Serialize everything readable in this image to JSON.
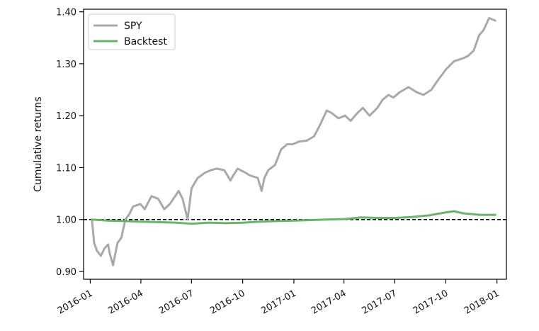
{
  "chart_data": {
    "type": "line",
    "title": "",
    "xlabel": "",
    "ylabel": "Cumulative returns",
    "xlim": [
      "2015-12-20",
      "2018-01-18"
    ],
    "ylim": [
      0.885,
      1.405
    ],
    "x_ticks": [
      "2016-01",
      "2016-04",
      "2016-07",
      "2016-10",
      "2017-01",
      "2017-04",
      "2017-07",
      "2017-10",
      "2018-01"
    ],
    "y_ticks": [
      0.9,
      1.0,
      1.1,
      1.2,
      1.3,
      1.4
    ],
    "y_tick_labels": [
      "0.90",
      "1.00",
      "1.10",
      "1.20",
      "1.30",
      "1.40"
    ],
    "reference_line": {
      "y": 1.0,
      "style": "dashed",
      "color": "#000000"
    },
    "legend_position": "top-left",
    "grid": false,
    "series": [
      {
        "name": "SPY",
        "color": "#a9a9a9",
        "points": [
          [
            "2016-01-04",
            1.0
          ],
          [
            "2016-01-08",
            0.955
          ],
          [
            "2016-01-13",
            0.94
          ],
          [
            "2016-01-20",
            0.93
          ],
          [
            "2016-01-27",
            0.945
          ],
          [
            "2016-02-02",
            0.952
          ],
          [
            "2016-02-05",
            0.935
          ],
          [
            "2016-02-11",
            0.912
          ],
          [
            "2016-02-19",
            0.955
          ],
          [
            "2016-02-26",
            0.965
          ],
          [
            "2016-03-04",
            1.0
          ],
          [
            "2016-03-11",
            1.01
          ],
          [
            "2016-03-18",
            1.025
          ],
          [
            "2016-03-31",
            1.03
          ],
          [
            "2016-04-08",
            1.02
          ],
          [
            "2016-04-20",
            1.045
          ],
          [
            "2016-05-02",
            1.04
          ],
          [
            "2016-05-13",
            1.02
          ],
          [
            "2016-05-23",
            1.03
          ],
          [
            "2016-06-08",
            1.055
          ],
          [
            "2016-06-15",
            1.04
          ],
          [
            "2016-06-24",
            1.0
          ],
          [
            "2016-07-01",
            1.06
          ],
          [
            "2016-07-12",
            1.08
          ],
          [
            "2016-07-25",
            1.09
          ],
          [
            "2016-08-05",
            1.095
          ],
          [
            "2016-08-15",
            1.098
          ],
          [
            "2016-08-29",
            1.095
          ],
          [
            "2016-09-09",
            1.075
          ],
          [
            "2016-09-14",
            1.085
          ],
          [
            "2016-09-22",
            1.098
          ],
          [
            "2016-10-06",
            1.09
          ],
          [
            "2016-10-14",
            1.085
          ],
          [
            "2016-10-28",
            1.08
          ],
          [
            "2016-11-04",
            1.055
          ],
          [
            "2016-11-09",
            1.08
          ],
          [
            "2016-11-16",
            1.095
          ],
          [
            "2016-11-28",
            1.105
          ],
          [
            "2016-12-09",
            1.135
          ],
          [
            "2016-12-20",
            1.145
          ],
          [
            "2016-12-30",
            1.145
          ],
          [
            "2017-01-10",
            1.15
          ],
          [
            "2017-01-24",
            1.152
          ],
          [
            "2017-02-06",
            1.16
          ],
          [
            "2017-02-16",
            1.18
          ],
          [
            "2017-03-01",
            1.21
          ],
          [
            "2017-03-10",
            1.205
          ],
          [
            "2017-03-22",
            1.195
          ],
          [
            "2017-04-03",
            1.2
          ],
          [
            "2017-04-13",
            1.19
          ],
          [
            "2017-04-25",
            1.205
          ],
          [
            "2017-05-05",
            1.215
          ],
          [
            "2017-05-17",
            1.2
          ],
          [
            "2017-05-31",
            1.215
          ],
          [
            "2017-06-09",
            1.23
          ],
          [
            "2017-06-20",
            1.24
          ],
          [
            "2017-06-29",
            1.235
          ],
          [
            "2017-07-10",
            1.245
          ],
          [
            "2017-07-26",
            1.255
          ],
          [
            "2017-08-10",
            1.245
          ],
          [
            "2017-08-22",
            1.24
          ],
          [
            "2017-09-05",
            1.25
          ],
          [
            "2017-09-18",
            1.27
          ],
          [
            "2017-10-02",
            1.29
          ],
          [
            "2017-10-16",
            1.305
          ],
          [
            "2017-10-31",
            1.31
          ],
          [
            "2017-11-10",
            1.315
          ],
          [
            "2017-11-20",
            1.325
          ],
          [
            "2017-11-30",
            1.355
          ],
          [
            "2017-12-08",
            1.365
          ],
          [
            "2017-12-18",
            1.388
          ],
          [
            "2017-12-29",
            1.383
          ]
        ]
      },
      {
        "name": "Backtest",
        "color": "#6bb26b",
        "points": [
          [
            "2016-01-04",
            1.0
          ],
          [
            "2016-02-01",
            0.998
          ],
          [
            "2016-03-01",
            0.997
          ],
          [
            "2016-04-01",
            0.996
          ],
          [
            "2016-05-02",
            0.995
          ],
          [
            "2016-06-01",
            0.994
          ],
          [
            "2016-07-01",
            0.992
          ],
          [
            "2016-08-01",
            0.994
          ],
          [
            "2016-09-01",
            0.993
          ],
          [
            "2016-10-03",
            0.994
          ],
          [
            "2016-11-01",
            0.996
          ],
          [
            "2016-12-01",
            0.997
          ],
          [
            "2017-01-03",
            0.998
          ],
          [
            "2017-02-01",
            0.999
          ],
          [
            "2017-03-01",
            1.0
          ],
          [
            "2017-04-03",
            1.001
          ],
          [
            "2017-05-01",
            1.004
          ],
          [
            "2017-06-01",
            1.003
          ],
          [
            "2017-07-03",
            1.003
          ],
          [
            "2017-08-01",
            1.005
          ],
          [
            "2017-09-01",
            1.008
          ],
          [
            "2017-10-02",
            1.014
          ],
          [
            "2017-10-16",
            1.016
          ],
          [
            "2017-11-01",
            1.012
          ],
          [
            "2017-12-01",
            1.009
          ],
          [
            "2017-12-29",
            1.009
          ]
        ]
      }
    ]
  }
}
